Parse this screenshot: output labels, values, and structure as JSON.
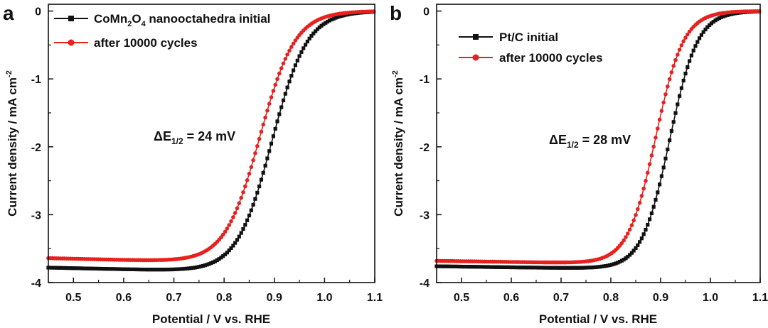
{
  "chart_data": [
    {
      "type": "line",
      "panel_label": "a",
      "xlabel": "Potential / V vs. RHE",
      "ylabel_main": "Current density / mA cm",
      "ylabel_sup": "-2",
      "xlim": [
        0.45,
        1.1
      ],
      "ylim": [
        -4,
        0.1
      ],
      "xticks": [
        "0.5",
        "0.6",
        "0.7",
        "0.8",
        "0.9",
        "1.0",
        "1.1"
      ],
      "yticks": [
        "0",
        "-1",
        "-2",
        "-3",
        "-4"
      ],
      "legend": [
        {
          "pre": "CoMn",
          "sub1": "2",
          "mid": "O",
          "sub2": "4",
          "post": " nanooctahedra initial",
          "color": "#111111",
          "marker": "square"
        },
        {
          "pre": "after 10000 cycles",
          "sub1": "",
          "mid": "",
          "sub2": "",
          "post": "",
          "color": "#e8201e",
          "marker": "circle"
        }
      ],
      "annotation": {
        "pre": "ΔE",
        "sub": "1/2",
        "post": " = 24 mV"
      },
      "series": [
        {
          "name": "CoMn2O4 nanooctahedra initial",
          "color": "#111111",
          "marker": "square",
          "limit": -3.78,
          "slope": -0.16,
          "e_half": 0.895,
          "k": 0.035
        },
        {
          "name": "after 10000 cycles",
          "color": "#e8201e",
          "marker": "circle",
          "limit": -3.64,
          "slope": -0.18,
          "e_half": 0.871,
          "k": 0.035
        }
      ]
    },
    {
      "type": "line",
      "panel_label": "b",
      "xlabel": "Potential / V vs. RHE",
      "ylabel_main": "Current density / mA cm",
      "ylabel_sup": "-2",
      "xlim": [
        0.45,
        1.1
      ],
      "ylim": [
        -4,
        0.1
      ],
      "xticks": [
        "0.5",
        "0.6",
        "0.7",
        "0.8",
        "0.9",
        "1.0",
        "1.1"
      ],
      "yticks": [
        "0",
        "-1",
        "-2",
        "-3",
        "-4"
      ],
      "legend": [
        {
          "pre": "Pt/C initial",
          "sub1": "",
          "mid": "",
          "sub2": "",
          "post": "",
          "color": "#111111",
          "marker": "square"
        },
        {
          "pre": "after 10000 cycles",
          "sub1": "",
          "mid": "",
          "sub2": "",
          "post": "",
          "color": "#e8201e",
          "marker": "circle"
        }
      ],
      "annotation": {
        "pre": "ΔE",
        "sub": "1/2",
        "post": " = 28 mV"
      },
      "series": [
        {
          "name": "Pt/C initial",
          "color": "#111111",
          "marker": "square",
          "limit": -3.76,
          "slope": -0.1,
          "e_half": 0.918,
          "k": 0.028
        },
        {
          "name": "after 10000 cycles",
          "color": "#e8201e",
          "marker": "circle",
          "limit": -3.68,
          "slope": -0.11,
          "e_half": 0.89,
          "k": 0.028
        }
      ]
    }
  ]
}
